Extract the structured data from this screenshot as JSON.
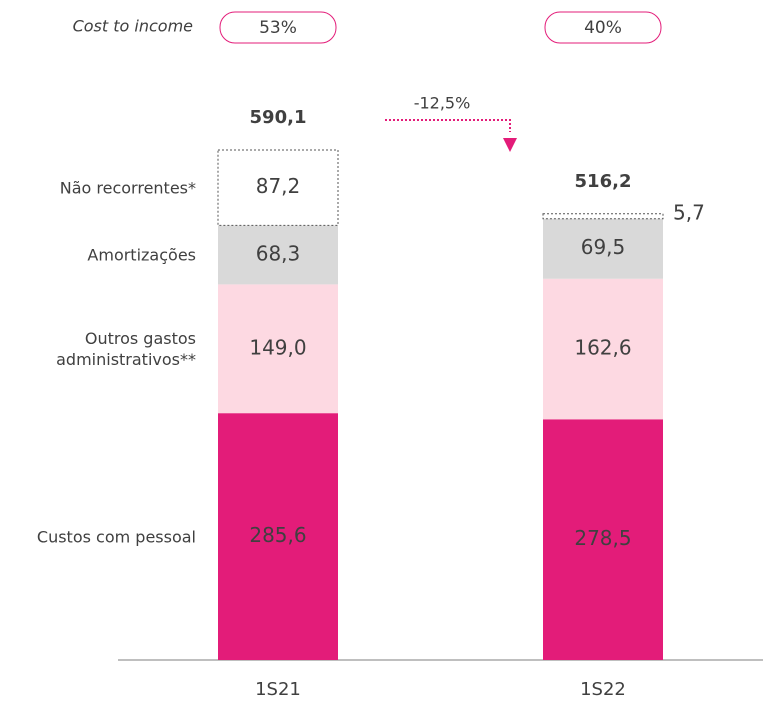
{
  "chart_data": {
    "type": "stacked_bar",
    "categories": [
      "1S21",
      "1S22"
    ],
    "series": [
      {
        "name": "Custos com pessoal",
        "color": "#e31c79",
        "values": [
          285.6,
          278.5
        ],
        "value_labels": [
          "285,6",
          "278,5"
        ]
      },
      {
        "name": "Outros gastos\nadministrativos**",
        "color": "#fdd9e2",
        "values": [
          149.0,
          162.6
        ],
        "value_labels": [
          "149,0",
          "162,6"
        ]
      },
      {
        "name": "Amortizações",
        "color": "#d9d9d9",
        "values": [
          68.3,
          69.5
        ],
        "value_labels": [
          "68,3",
          "69,5"
        ]
      },
      {
        "name": "Não recorrentes*",
        "color": "#ffffff",
        "values": [
          87.2,
          5.7
        ],
        "value_labels": [
          "87,2",
          "5,7"
        ]
      }
    ],
    "totals": [
      590.1,
      516.2
    ],
    "total_labels": [
      "590,1",
      "516,2"
    ],
    "change": -12.5,
    "change_label": "-12,5%",
    "cost_to_income": {
      "label": "Cost to income",
      "values": [
        53,
        40
      ],
      "value_labels": [
        "53%",
        "40%"
      ]
    }
  }
}
